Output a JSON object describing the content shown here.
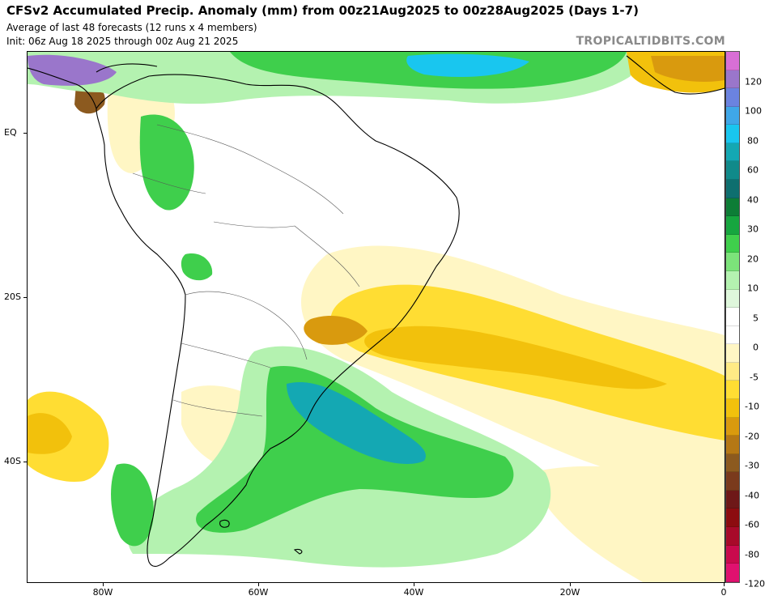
{
  "header": {
    "title": "CFSv2 Accumulated Precip. Anomaly (mm) from 00z21Aug2025 to 00z28Aug2025 (Days 1-7)",
    "subtitle": "Average of last 48 forecasts (12 runs x 4 members)",
    "init": "Init: 06z Aug 18 2025 through 00z Aug 21 2025",
    "brand": "TROPICALTIDBITS.COM"
  },
  "axes": {
    "lat_labels": [
      "EQ",
      "20S",
      "40S"
    ],
    "lon_labels": [
      "80W",
      "60W",
      "40W",
      "20W",
      "0"
    ]
  },
  "legend": {
    "labels": [
      "120",
      "100",
      "80",
      "60",
      "40",
      "30",
      "20",
      "10",
      "5",
      "0",
      "-5",
      "-10",
      "-20",
      "-30",
      "-40",
      "-60",
      "-80",
      "-120"
    ],
    "colors": [
      "#d86fd6",
      "#9a76cb",
      "#6b83e0",
      "#3fa7e8",
      "#19c6ef",
      "#14a8b3",
      "#108a8a",
      "#0e6f6f",
      "#0d7d36",
      "#16a63f",
      "#3fcf4c",
      "#7ce37a",
      "#b4f2b0",
      "#dff7dc",
      "#ffffff",
      "#ffffff",
      "#fff6c4",
      "#ffea85",
      "#ffdd33",
      "#f2c10c",
      "#d99a0e",
      "#b57815",
      "#8c5a1f",
      "#7a3a1c",
      "#6e1818",
      "#8c0c10",
      "#a80a2a",
      "#c90a4d",
      "#e0116f"
    ]
  },
  "map_colors": {
    "wet_light": "#b4f2b0",
    "wet_mid": "#3fcf4c",
    "wet_dark": "#16a63f",
    "wet_teal": "#14a8b3",
    "wet_cyan": "#19c6ef",
    "wet_purple": "#9a76cb",
    "dry_light": "#fff6c4",
    "dry_mid": "#ffdd33",
    "dry_dark": "#f2c10c",
    "dry_brown": "#d99a0e",
    "dry_darkbrown": "#8c5a1f"
  }
}
